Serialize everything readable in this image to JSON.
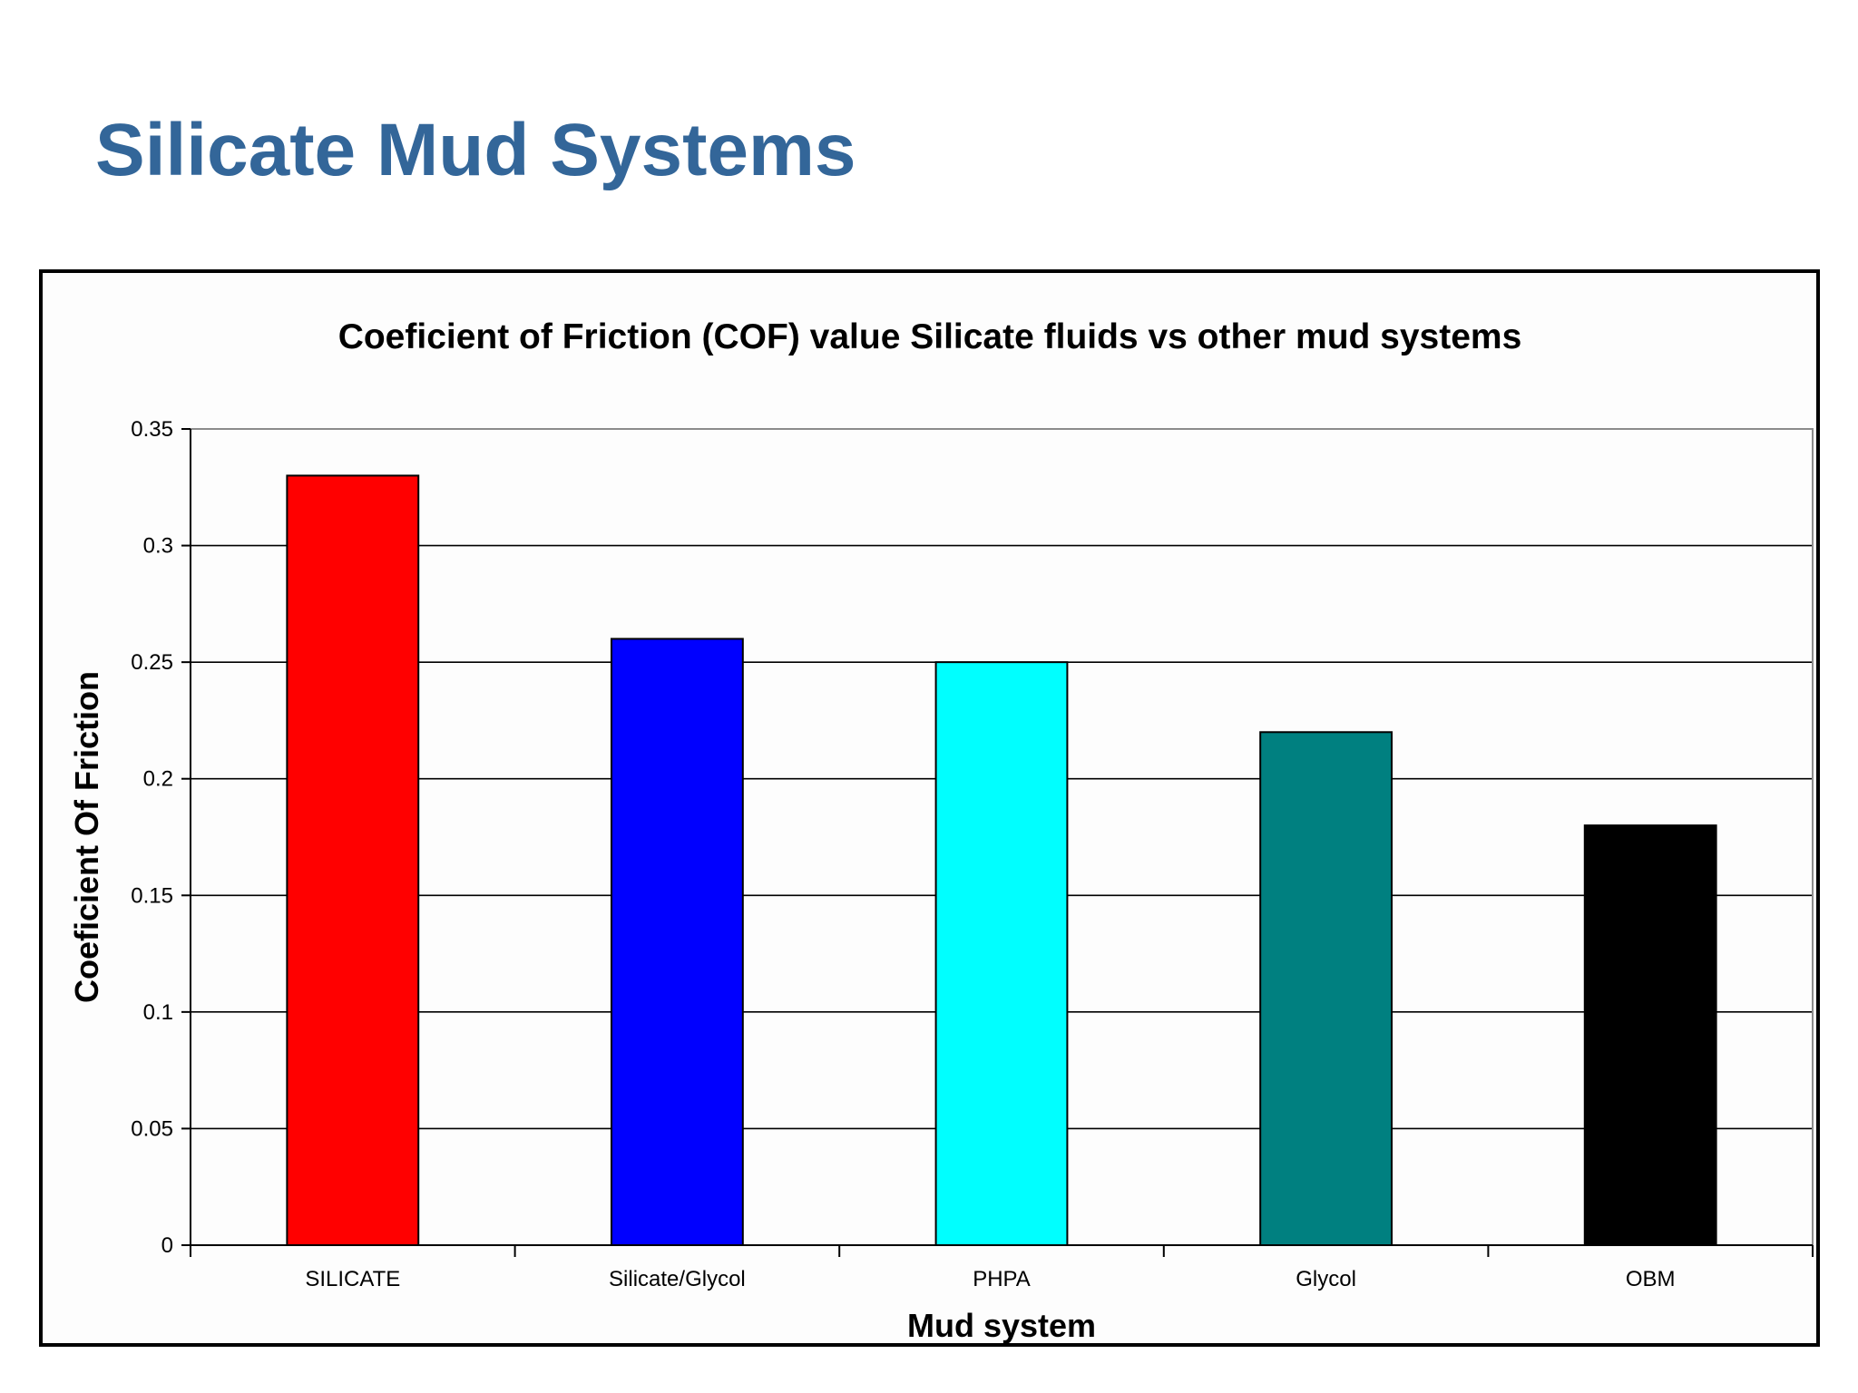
{
  "slide": {
    "title": "Silicate Mud Systems"
  },
  "chart_data": {
    "type": "bar",
    "title": "Coeficient of Friction (COF) value Silicate fluids vs other mud systems",
    "xlabel": "Mud system",
    "ylabel": "Coeficient Of Friction",
    "categories": [
      "SILICATE",
      "Silicate/Glycol",
      "PHPA",
      "Glycol",
      "OBM"
    ],
    "values": [
      0.33,
      0.26,
      0.25,
      0.22,
      0.18
    ],
    "bar_colors": [
      "#ff0000",
      "#0000ff",
      "#00ffff",
      "#008080",
      "#000000"
    ],
    "ylim": [
      0,
      0.35
    ],
    "yticks": [
      0,
      0.05,
      0.1,
      0.15,
      0.2,
      0.25,
      0.3,
      0.35
    ],
    "ytick_labels": [
      "0",
      "0.05",
      "0.1",
      "0.15",
      "0.2",
      "0.25",
      "0.3",
      "0.35"
    ],
    "grid": true,
    "legend": false,
    "plot_background": "#fdfdfd"
  }
}
